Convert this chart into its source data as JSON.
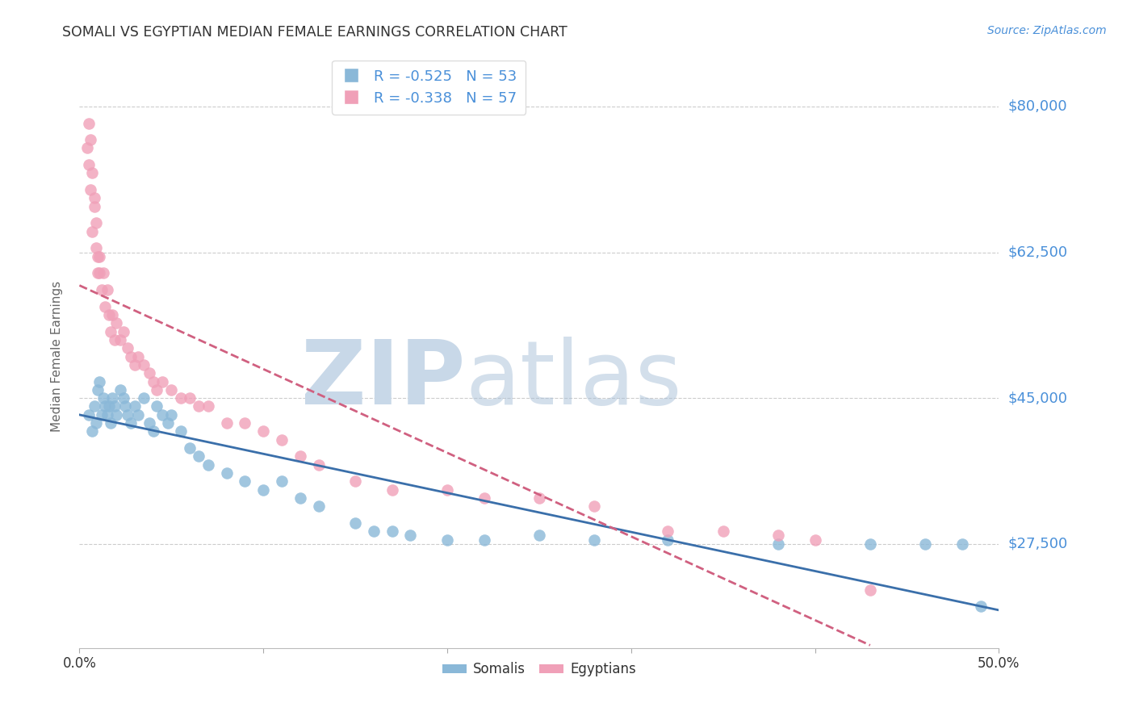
{
  "title": "SOMALI VS EGYPTIAN MEDIAN FEMALE EARNINGS CORRELATION CHART",
  "source": "Source: ZipAtlas.com",
  "ylabel": "Median Female Earnings",
  "somali_R": -0.525,
  "somali_N": 53,
  "egyptian_R": -0.338,
  "egyptian_N": 57,
  "somali_color": "#8ab8d8",
  "egyptian_color": "#f0a0b8",
  "somali_line_color": "#3a6faa",
  "egyptian_line_color": "#d06080",
  "watermark_zip_color": "#c8d8e8",
  "watermark_atlas_color": "#a8c0d8",
  "legend_label_somali": "Somalis",
  "legend_label_egyptian": "Egyptians",
  "background_color": "#ffffff",
  "grid_color": "#cccccc",
  "title_color": "#333333",
  "axis_label_color": "#666666",
  "right_tick_color": "#4a90d9",
  "xlim": [
    0.0,
    0.5
  ],
  "ylim": [
    15000,
    85000
  ],
  "somali_scatter_x": [
    0.005,
    0.007,
    0.008,
    0.009,
    0.01,
    0.011,
    0.012,
    0.013,
    0.014,
    0.015,
    0.016,
    0.017,
    0.018,
    0.019,
    0.02,
    0.022,
    0.024,
    0.025,
    0.026,
    0.028,
    0.03,
    0.032,
    0.035,
    0.038,
    0.04,
    0.042,
    0.045,
    0.048,
    0.05,
    0.055,
    0.06,
    0.065,
    0.07,
    0.08,
    0.09,
    0.1,
    0.11,
    0.12,
    0.13,
    0.15,
    0.16,
    0.17,
    0.18,
    0.2,
    0.22,
    0.25,
    0.28,
    0.32,
    0.38,
    0.43,
    0.46,
    0.48,
    0.49
  ],
  "somali_scatter_y": [
    43000,
    41000,
    44000,
    42000,
    46000,
    47000,
    43000,
    45000,
    44000,
    43000,
    44000,
    42000,
    45000,
    44000,
    43000,
    46000,
    45000,
    44000,
    43000,
    42000,
    44000,
    43000,
    45000,
    42000,
    41000,
    44000,
    43000,
    42000,
    43000,
    41000,
    39000,
    38000,
    37000,
    36000,
    35000,
    34000,
    35000,
    33000,
    32000,
    30000,
    29000,
    29000,
    28500,
    28000,
    28000,
    28500,
    28000,
    28000,
    27500,
    27500,
    27500,
    27500,
    20000
  ],
  "egyptian_scatter_x": [
    0.004,
    0.005,
    0.006,
    0.007,
    0.008,
    0.009,
    0.01,
    0.011,
    0.012,
    0.013,
    0.014,
    0.015,
    0.016,
    0.017,
    0.018,
    0.019,
    0.02,
    0.022,
    0.024,
    0.026,
    0.028,
    0.03,
    0.032,
    0.035,
    0.038,
    0.04,
    0.042,
    0.045,
    0.05,
    0.055,
    0.06,
    0.065,
    0.07,
    0.08,
    0.09,
    0.1,
    0.11,
    0.12,
    0.13,
    0.15,
    0.17,
    0.2,
    0.22,
    0.25,
    0.28,
    0.32,
    0.35,
    0.38,
    0.4,
    0.43,
    0.005,
    0.006,
    0.007,
    0.008,
    0.009,
    0.01,
    0.011
  ],
  "egyptian_scatter_y": [
    75000,
    73000,
    70000,
    65000,
    68000,
    63000,
    60000,
    62000,
    58000,
    60000,
    56000,
    58000,
    55000,
    53000,
    55000,
    52000,
    54000,
    52000,
    53000,
    51000,
    50000,
    49000,
    50000,
    49000,
    48000,
    47000,
    46000,
    47000,
    46000,
    45000,
    45000,
    44000,
    44000,
    42000,
    42000,
    41000,
    40000,
    38000,
    37000,
    35000,
    34000,
    34000,
    33000,
    33000,
    32000,
    29000,
    29000,
    28500,
    28000,
    22000,
    78000,
    76000,
    72000,
    69000,
    66000,
    62000,
    60000
  ]
}
